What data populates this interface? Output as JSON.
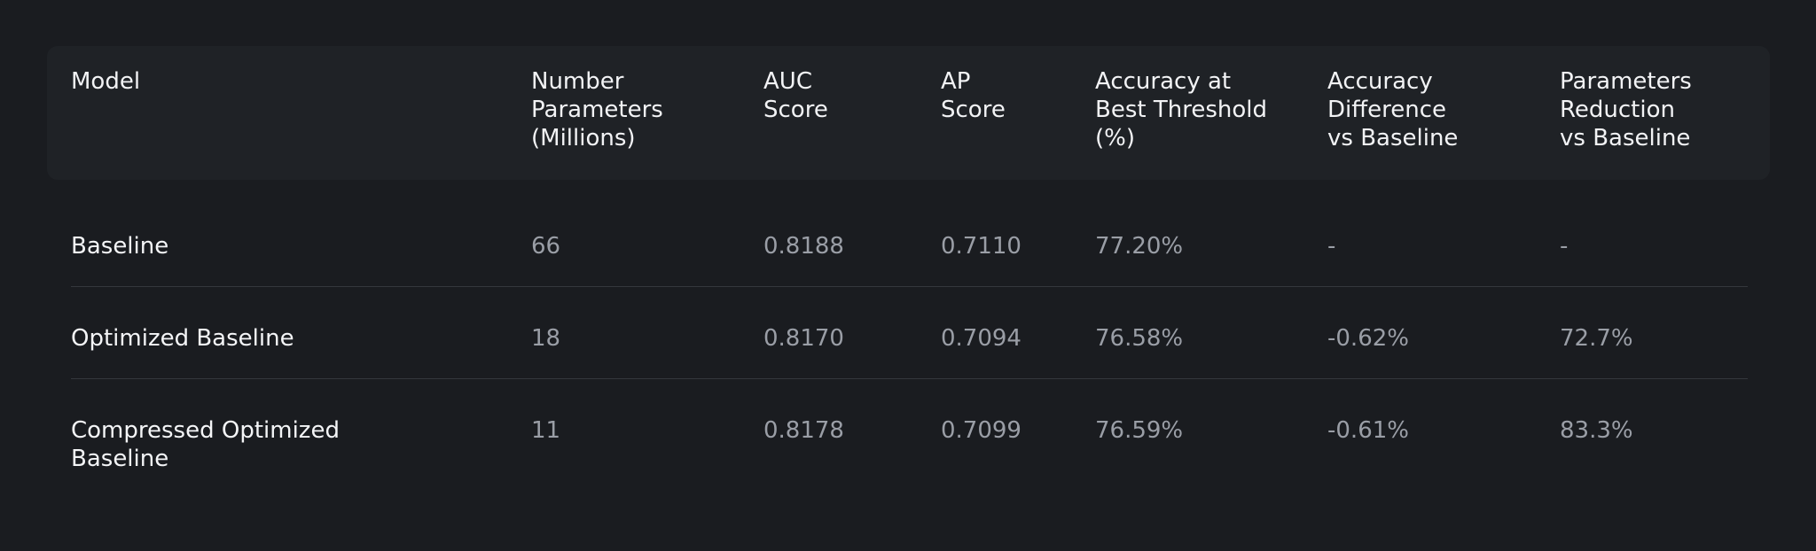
{
  "table": {
    "headers": [
      "Model",
      "Number\nParameters\n(Millions)",
      "AUC\nScore",
      "AP\nScore",
      "Accuracy at\nBest Threshold\n(%)",
      "Accuracy\nDifference\nvs Baseline",
      "Parameters\nReduction\nvs Baseline"
    ],
    "rows": [
      {
        "model": "Baseline",
        "params": "66",
        "auc": "0.8188",
        "ap": "0.7110",
        "accuracy": "77.20%",
        "acc_diff": "-",
        "param_reduction": "-"
      },
      {
        "model": "Optimized Baseline",
        "params": "18",
        "auc": "0.8170",
        "ap": "0.7094",
        "accuracy": "76.58%",
        "acc_diff": "-0.62%",
        "param_reduction": "72.7%"
      },
      {
        "model": "Compressed Optimized\nBaseline",
        "params": "11",
        "auc": "0.8178",
        "ap": "0.7099",
        "accuracy": "76.59%",
        "acc_diff": "-0.61%",
        "param_reduction": "83.3%"
      }
    ]
  }
}
